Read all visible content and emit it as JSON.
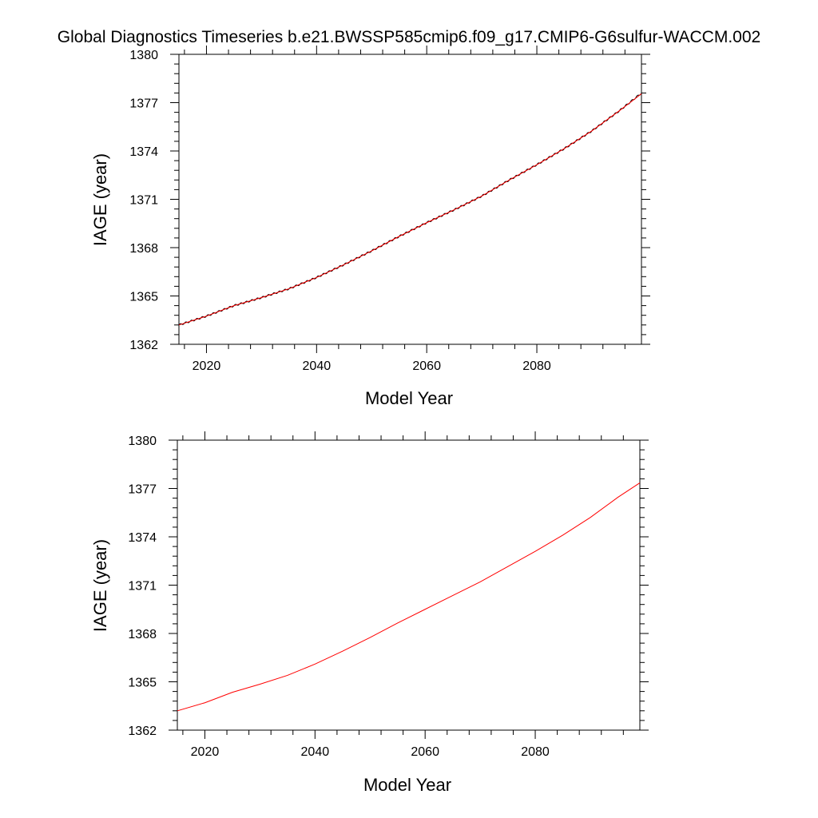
{
  "title": "Global Diagnostics Timeseries b.e21.BWSSP585cmip6.f09_g17.CMIP6-G6sulfur-WACCM.002",
  "colors": {
    "annual": "#ff0000",
    "monthly": "#000000"
  },
  "chart_data": [
    {
      "type": "line",
      "xlabel": "Model Year",
      "ylabel": "IAGE (year)",
      "xlim": [
        2015,
        2099
      ],
      "ylim": [
        1362,
        1380
      ],
      "xticks": [
        2020,
        2040,
        2060,
        2080
      ],
      "yticks": [
        1362,
        1365,
        1368,
        1371,
        1374,
        1377,
        1380
      ],
      "grid": false,
      "series": [
        {
          "style": "monthly",
          "x": [
            2015,
            2020,
            2025,
            2030,
            2035,
            2040,
            2045,
            2050,
            2055,
            2060,
            2065,
            2070,
            2075,
            2080,
            2085,
            2090,
            2095,
            2099
          ],
          "y": [
            1363.2,
            1363.75,
            1364.4,
            1364.9,
            1365.45,
            1366.15,
            1366.95,
            1367.8,
            1368.7,
            1369.55,
            1370.35,
            1371.2,
            1372.2,
            1373.15,
            1374.15,
            1375.25,
            1376.5,
            1377.6
          ]
        },
        {
          "style": "annual",
          "x": [
            2015,
            2020,
            2025,
            2030,
            2035,
            2040,
            2045,
            2050,
            2055,
            2060,
            2065,
            2070,
            2075,
            2080,
            2085,
            2090,
            2095,
            2099
          ],
          "y": [
            1363.2,
            1363.75,
            1364.4,
            1364.9,
            1365.45,
            1366.15,
            1366.95,
            1367.8,
            1368.7,
            1369.55,
            1370.35,
            1371.2,
            1372.2,
            1373.15,
            1374.15,
            1375.25,
            1376.5,
            1377.55
          ]
        }
      ]
    },
    {
      "type": "line",
      "xlabel": "Model Year",
      "ylabel": "IAGE (year)",
      "xlim": [
        2015,
        2099
      ],
      "ylim": [
        1362,
        1380
      ],
      "xticks": [
        2020,
        2040,
        2060,
        2080
      ],
      "yticks": [
        1362,
        1365,
        1368,
        1371,
        1374,
        1377,
        1380
      ],
      "grid": false,
      "series": [
        {
          "style": "annual",
          "x": [
            2015,
            2020,
            2025,
            2030,
            2035,
            2040,
            2045,
            2050,
            2055,
            2060,
            2065,
            2070,
            2075,
            2080,
            2085,
            2090,
            2095,
            2099
          ],
          "y": [
            1363.2,
            1363.7,
            1364.35,
            1364.85,
            1365.4,
            1366.1,
            1366.9,
            1367.75,
            1368.65,
            1369.5,
            1370.35,
            1371.2,
            1372.15,
            1373.1,
            1374.1,
            1375.2,
            1376.45,
            1377.35
          ]
        }
      ]
    }
  ]
}
